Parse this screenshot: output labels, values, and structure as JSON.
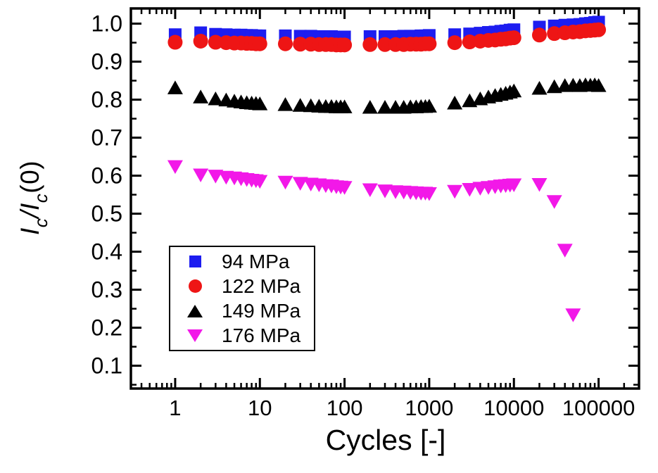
{
  "figure": {
    "background": "#ffffff",
    "frame_color": "#000000"
  },
  "axes": {
    "ylabel_parts": {
      "p0": "I",
      "p1": "c",
      "p2": "/",
      "p3": "I",
      "p4": "c",
      "p5": "(0)"
    }
  },
  "chart_data": {
    "type": "scatter",
    "xscale": "log",
    "yscale": "linear",
    "xlabel": "Cycles [-]",
    "ylabel": "Ic/Ic(0)",
    "xlim": [
      0.3,
      300000
    ],
    "ylim": [
      0.04,
      1.04
    ],
    "grid": false,
    "legend_position": "lower-left",
    "x_major_ticks": [
      {
        "value": 1,
        "label": "1"
      },
      {
        "value": 10,
        "label": "10"
      },
      {
        "value": 100,
        "label": "100"
      },
      {
        "value": 1000,
        "label": "1000"
      },
      {
        "value": 10000,
        "label": "10000"
      },
      {
        "value": 100000,
        "label": "100000"
      }
    ],
    "y_major_ticks": [
      {
        "value": 0.1,
        "label": "0.1"
      },
      {
        "value": 0.2,
        "label": "0.2"
      },
      {
        "value": 0.3,
        "label": "0.3"
      },
      {
        "value": 0.4,
        "label": "0.4"
      },
      {
        "value": 0.5,
        "label": "0.5"
      },
      {
        "value": 0.6,
        "label": "0.6"
      },
      {
        "value": 0.7,
        "label": "0.7"
      },
      {
        "value": 0.8,
        "label": "0.8"
      },
      {
        "value": 0.9,
        "label": "0.9"
      },
      {
        "value": 1.0,
        "label": "1.0"
      }
    ],
    "x_minor_mode": "log-2-to-9",
    "y_minor_step": 0.05,
    "series": [
      {
        "name": "94 MPa",
        "marker": "square",
        "color": "#1d1df0",
        "x": [
          1,
          2,
          3,
          4,
          5,
          6,
          7,
          8,
          9,
          10,
          20,
          30,
          40,
          50,
          60,
          70,
          80,
          90,
          100,
          200,
          300,
          400,
          500,
          600,
          700,
          800,
          900,
          1000,
          2000,
          3000,
          4000,
          5000,
          6000,
          7000,
          8000,
          9000,
          10000,
          20000,
          30000,
          40000,
          50000,
          60000,
          70000,
          80000,
          90000,
          100000
        ],
        "y": [
          0.971,
          0.976,
          0.972,
          0.971,
          0.97,
          0.97,
          0.969,
          0.969,
          0.968,
          0.968,
          0.968,
          0.967,
          0.967,
          0.966,
          0.966,
          0.966,
          0.965,
          0.965,
          0.965,
          0.966,
          0.966,
          0.966,
          0.967,
          0.967,
          0.967,
          0.968,
          0.968,
          0.969,
          0.971,
          0.973,
          0.975,
          0.977,
          0.978,
          0.98,
          0.981,
          0.983,
          0.984,
          0.991,
          0.994,
          0.996,
          0.997,
          0.998,
          1.0,
          1.001,
          1.003,
          1.004
        ]
      },
      {
        "name": "122 MPa",
        "marker": "circle",
        "color": "#ee1515",
        "x": [
          1,
          2,
          3,
          4,
          5,
          6,
          7,
          8,
          9,
          10,
          20,
          30,
          40,
          50,
          60,
          70,
          80,
          90,
          100,
          200,
          300,
          400,
          500,
          600,
          700,
          800,
          900,
          1000,
          2000,
          3000,
          4000,
          5000,
          6000,
          7000,
          8000,
          9000,
          10000,
          20000,
          30000,
          40000,
          50000,
          60000,
          70000,
          80000,
          90000,
          100000
        ],
        "y": [
          0.951,
          0.954,
          0.951,
          0.95,
          0.949,
          0.949,
          0.948,
          0.948,
          0.947,
          0.947,
          0.947,
          0.946,
          0.946,
          0.945,
          0.945,
          0.945,
          0.944,
          0.944,
          0.944,
          0.945,
          0.945,
          0.945,
          0.945,
          0.946,
          0.946,
          0.946,
          0.947,
          0.947,
          0.95,
          0.952,
          0.954,
          0.956,
          0.957,
          0.959,
          0.96,
          0.962,
          0.963,
          0.97,
          0.974,
          0.976,
          0.978,
          0.979,
          0.981,
          0.982,
          0.983,
          0.984
        ]
      },
      {
        "name": "149 MPa",
        "marker": "triangle-up",
        "color": "#000000",
        "x": [
          1,
          2,
          3,
          4,
          5,
          6,
          7,
          8,
          9,
          10,
          20,
          30,
          40,
          50,
          60,
          70,
          80,
          90,
          100,
          200,
          300,
          400,
          500,
          600,
          700,
          800,
          900,
          1000,
          2000,
          3000,
          4000,
          5000,
          6000,
          7000,
          8000,
          9000,
          10000,
          20000,
          30000,
          40000,
          50000,
          60000,
          70000,
          80000,
          90000,
          100000
        ],
        "y": [
          0.83,
          0.806,
          0.801,
          0.798,
          0.795,
          0.793,
          0.791,
          0.79,
          0.789,
          0.788,
          0.786,
          0.784,
          0.783,
          0.782,
          0.781,
          0.781,
          0.78,
          0.78,
          0.78,
          0.779,
          0.779,
          0.779,
          0.779,
          0.78,
          0.78,
          0.781,
          0.781,
          0.782,
          0.79,
          0.796,
          0.801,
          0.806,
          0.81,
          0.813,
          0.816,
          0.819,
          0.822,
          0.829,
          0.833,
          0.836,
          0.837,
          0.836,
          0.838,
          0.837,
          0.838,
          0.836
        ]
      },
      {
        "name": "176 MPa",
        "marker": "triangle-down",
        "color": "#f218e8",
        "x": [
          1,
          2,
          3,
          4,
          5,
          6,
          7,
          8,
          9,
          10,
          20,
          30,
          40,
          50,
          60,
          70,
          80,
          90,
          100,
          200,
          300,
          400,
          500,
          600,
          700,
          800,
          900,
          1000,
          2000,
          3000,
          4000,
          5000,
          6000,
          7000,
          8000,
          9000,
          10000,
          20000,
          30000,
          40000,
          50000
        ],
        "y": [
          0.625,
          0.603,
          0.6,
          0.597,
          0.595,
          0.593,
          0.591,
          0.589,
          0.588,
          0.586,
          0.584,
          0.581,
          0.579,
          0.577,
          0.575,
          0.574,
          0.572,
          0.571,
          0.57,
          0.564,
          0.561,
          0.559,
          0.558,
          0.557,
          0.556,
          0.555,
          0.555,
          0.554,
          0.56,
          0.565,
          0.568,
          0.57,
          0.572,
          0.574,
          0.575,
          0.576,
          0.577,
          0.578,
          0.533,
          0.405,
          0.235
        ]
      }
    ]
  }
}
